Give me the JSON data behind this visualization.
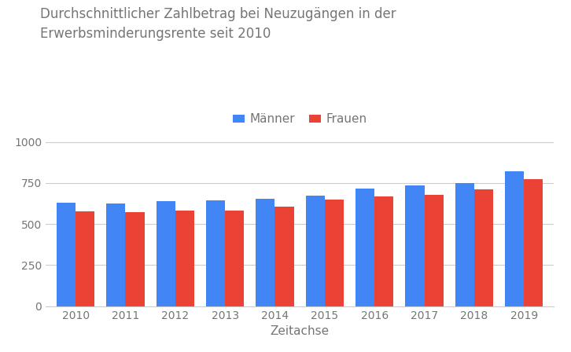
{
  "title_line1": "Durchschnittlicher Zahlbetrag bei Neuzugängen in der",
  "title_line2": "Erwerbsminderungsrente seit 2010",
  "xlabel": "Zeitachse",
  "years": [
    "2010",
    "2011",
    "2012",
    "2013",
    "2014",
    "2015",
    "2016",
    "2017",
    "2018",
    "2019"
  ],
  "maenner": [
    630,
    625,
    638,
    645,
    655,
    672,
    718,
    735,
    752,
    820
  ],
  "frauen": [
    578,
    573,
    582,
    584,
    607,
    648,
    668,
    680,
    713,
    773
  ],
  "color_maenner": "#4285F4",
  "color_frauen": "#EA4335",
  "legend_maenner": "Männer",
  "legend_frauen": "Frauen",
  "ylim": [
    0,
    1050
  ],
  "yticks": [
    0,
    250,
    500,
    750,
    1000
  ],
  "background_color": "#ffffff",
  "grid_color": "#cccccc",
  "title_color": "#757575",
  "axis_label_color": "#757575",
  "tick_color": "#757575",
  "title_fontsize": 12,
  "axis_fontsize": 11,
  "tick_fontsize": 10,
  "bar_width": 0.38
}
